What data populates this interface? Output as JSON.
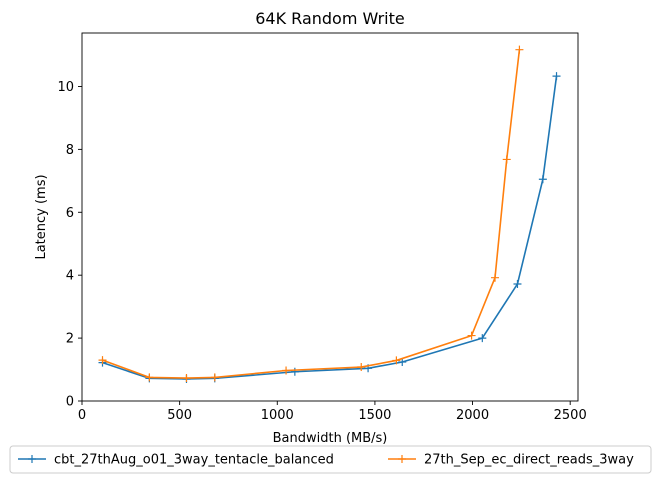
{
  "chart_data": {
    "type": "line",
    "title": "64K  Random Write",
    "xlabel": "Bandwidth (MB/s)",
    "ylabel": "Latency (ms)",
    "xlim": [
      0,
      2540
    ],
    "ylim": [
      0,
      11.7
    ],
    "xticks": [
      "0",
      "500",
      "1000",
      "1500",
      "2000",
      "2500"
    ],
    "yticks": [
      "0",
      "2",
      "4",
      "6",
      "8",
      "10"
    ],
    "grid": false,
    "legend_position": "bottom",
    "series": [
      {
        "name": "cbt_27thAug_o01_3way_tentacle_balanced",
        "color": "#1f77b4",
        "marker": "plus",
        "x": [
          105,
          345,
          535,
          680,
          1090,
          1465,
          1640,
          2050,
          2230,
          2360,
          2430
        ],
        "y": [
          1.22,
          0.72,
          0.7,
          0.72,
          0.93,
          1.04,
          1.24,
          2.0,
          3.72,
          7.05,
          10.33
        ]
      },
      {
        "name": "27th_Sep_ec_direct_reads_3way",
        "color": "#ff7f0e",
        "marker": "plus",
        "x": [
          105,
          345,
          535,
          680,
          1045,
          1430,
          1610,
          1995,
          2115,
          2175,
          2240
        ],
        "y": [
          1.3,
          0.75,
          0.73,
          0.75,
          0.97,
          1.08,
          1.29,
          2.08,
          3.92,
          7.68,
          11.17
        ]
      }
    ]
  }
}
